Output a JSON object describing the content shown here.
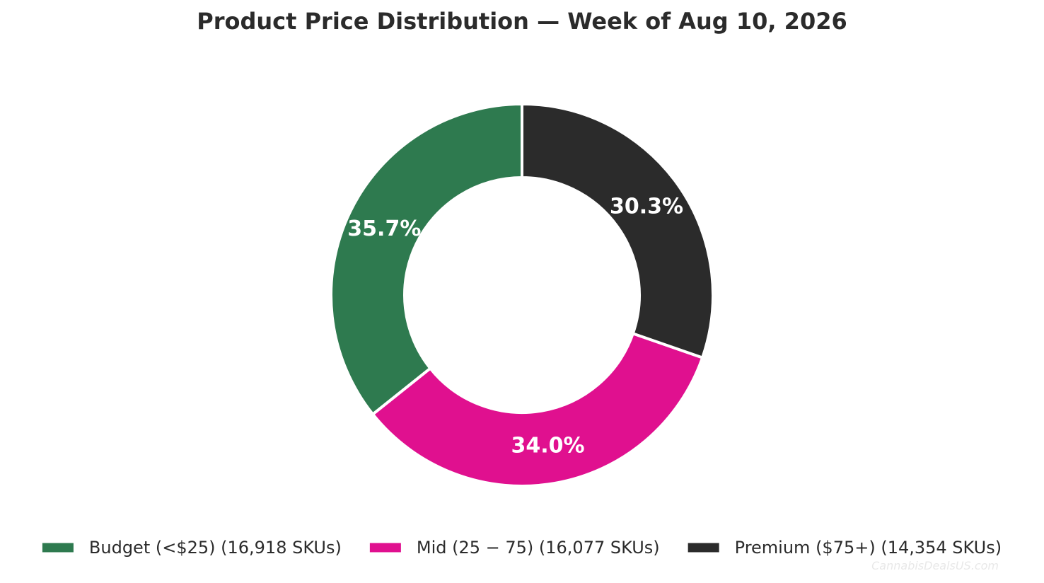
{
  "chart_data": {
    "type": "pie",
    "title": "Product Price Distribution — Week of Aug 10, 2026",
    "donut": true,
    "labels": [
      "Budget (<$25)",
      "Mid (25 − 75)",
      "Premium ($75+)"
    ],
    "values": [
      16918,
      16077,
      14354
    ],
    "percent_labels": [
      "35.7%",
      "34.0%",
      "30.3%"
    ],
    "legend": [
      "Budget (<$25)  (16,918 SKUs)",
      "Mid (25 − 75)  (16,077 SKUs)",
      "Premium ($75+)  (14,354 SKUs)"
    ],
    "colors": [
      "#2e7a4f",
      "#e0108f",
      "#2b2b2b"
    ],
    "legend_placement": "bottom",
    "start_angle_deg": 90,
    "direction": "counterclockwise"
  },
  "watermark": "CannabisDealsUS.com"
}
